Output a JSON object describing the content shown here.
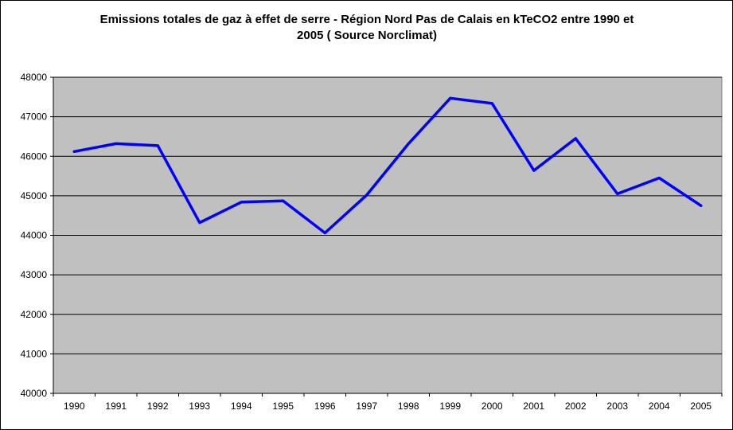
{
  "chart_data": {
    "type": "line",
    "title_lines": [
      "Emissions totales de gaz à effet de serre - Région Nord Pas de Calais en kTeCO2 entre 1990 et",
      "2005 ( Source Norclimat)"
    ],
    "categories": [
      "1990",
      "1991",
      "1992",
      "1993",
      "1994",
      "1995",
      "1996",
      "1997",
      "1998",
      "1999",
      "2000",
      "2001",
      "2002",
      "2003",
      "2004",
      "2005"
    ],
    "series": [
      {
        "values": [
          46120,
          46320,
          46270,
          44320,
          44840,
          44870,
          44060,
          45020,
          46320,
          47470,
          47340,
          45640,
          46450,
          45050,
          45450,
          44750
        ]
      }
    ],
    "ylim": [
      40000,
      48000
    ],
    "yticks": [
      40000,
      41000,
      42000,
      43000,
      44000,
      45000,
      46000,
      47000,
      48000
    ],
    "grid": true,
    "legend": "none",
    "colors": {
      "plot_background": "#c0c0c0",
      "line": "#0000ff",
      "gridline": "#000000"
    }
  }
}
